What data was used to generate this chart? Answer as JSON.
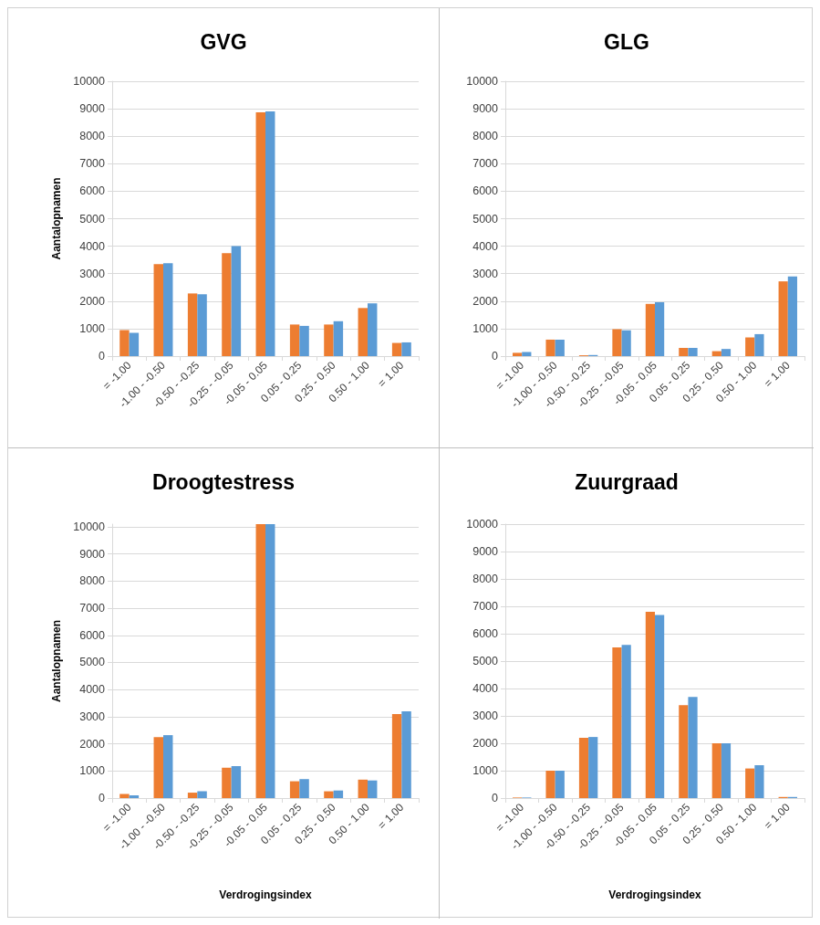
{
  "chart_data": [
    {
      "type": "bar",
      "title": "GVG",
      "ylabel": "Aantalopnamen",
      "categories": [
        "= -1.00",
        "-1.00 - -0.50",
        "-0.50 - -0.25",
        "-0.25 - -0.05",
        "-0.05 - 0.05",
        "0.05 - 0.25",
        "0.25 - 0.50",
        "0.50 - 1.00",
        "= 1.00"
      ],
      "series": [
        {
          "color": "#ed7d31",
          "values": [
            950,
            3350,
            2280,
            3750,
            8870,
            1150,
            1150,
            1750,
            480
          ]
        },
        {
          "color": "#5b9bd5",
          "values": [
            850,
            3380,
            2250,
            4000,
            8900,
            1100,
            1270,
            1920,
            500
          ]
        }
      ],
      "ylim": [
        0,
        10000
      ],
      "yticks": [
        0,
        1000,
        2000,
        3000,
        4000,
        5000,
        6000,
        7000,
        8000,
        9000,
        10000
      ],
      "grid": "y"
    },
    {
      "type": "bar",
      "title": "GLG",
      "categories": [
        "= -1.00",
        "-1.00 - -0.50",
        "-0.50 - -0.25",
        "-0.25 - -0.05",
        "-0.05 - 0.05",
        "0.05 - 0.25",
        "0.25 - 0.50",
        "0.50 - 1.00",
        "= 1.00"
      ],
      "series": [
        {
          "color": "#ed7d31",
          "values": [
            120,
            600,
            30,
            980,
            1900,
            300,
            180,
            680,
            2720
          ]
        },
        {
          "color": "#5b9bd5",
          "values": [
            150,
            600,
            40,
            940,
            1960,
            300,
            260,
            800,
            2900
          ]
        }
      ],
      "ylim": [
        0,
        10000
      ],
      "yticks": [
        0,
        1000,
        2000,
        3000,
        4000,
        5000,
        6000,
        7000,
        8000,
        9000,
        10000
      ],
      "grid": "y"
    },
    {
      "type": "bar",
      "title": "Droogtestress",
      "ylabel": "Aantalopnamen",
      "xlabel": "Verdrogingsindex",
      "categories": [
        "= -1.00",
        "-1.00 - -0.50",
        "-0.50 - -0.25",
        "-0.25 - -0.05",
        "-0.05 - 0.05",
        "0.05 - 0.25",
        "0.25 - 0.50",
        "0.50 - 1.00",
        "= 1.00"
      ],
      "series": [
        {
          "color": "#ed7d31",
          "values": [
            150,
            2250,
            200,
            1120,
            10100,
            620,
            250,
            680,
            3100
          ]
        },
        {
          "color": "#5b9bd5",
          "values": [
            100,
            2320,
            250,
            1180,
            10100,
            700,
            280,
            650,
            3200
          ]
        }
      ],
      "ylim": [
        0,
        10100
      ],
      "yticks": [
        0,
        1000,
        2000,
        3000,
        4000,
        5000,
        6000,
        7000,
        8000,
        9000,
        10000
      ],
      "grid": "y"
    },
    {
      "type": "bar",
      "title": "Zuurgraad",
      "xlabel": "Verdrogingsindex",
      "categories": [
        "= -1.00",
        "-1.00 - -0.50",
        "-0.50 - -0.25",
        "-0.25 - -0.05",
        "-0.05 - 0.05",
        "0.05 - 0.25",
        "0.25 - 0.50",
        "0.50 - 1.00",
        "= 1.00"
      ],
      "series": [
        {
          "color": "#ed7d31",
          "values": [
            20,
            1000,
            2200,
            5500,
            6800,
            3390,
            2000,
            1080,
            40
          ]
        },
        {
          "color": "#5b9bd5",
          "values": [
            20,
            1000,
            2230,
            5590,
            6680,
            3690,
            2000,
            1200,
            40
          ]
        }
      ],
      "ylim": [
        0,
        10000
      ],
      "yticks": [
        0,
        1000,
        2000,
        3000,
        4000,
        5000,
        6000,
        7000,
        8000,
        9000,
        10000
      ],
      "grid": "y"
    }
  ]
}
